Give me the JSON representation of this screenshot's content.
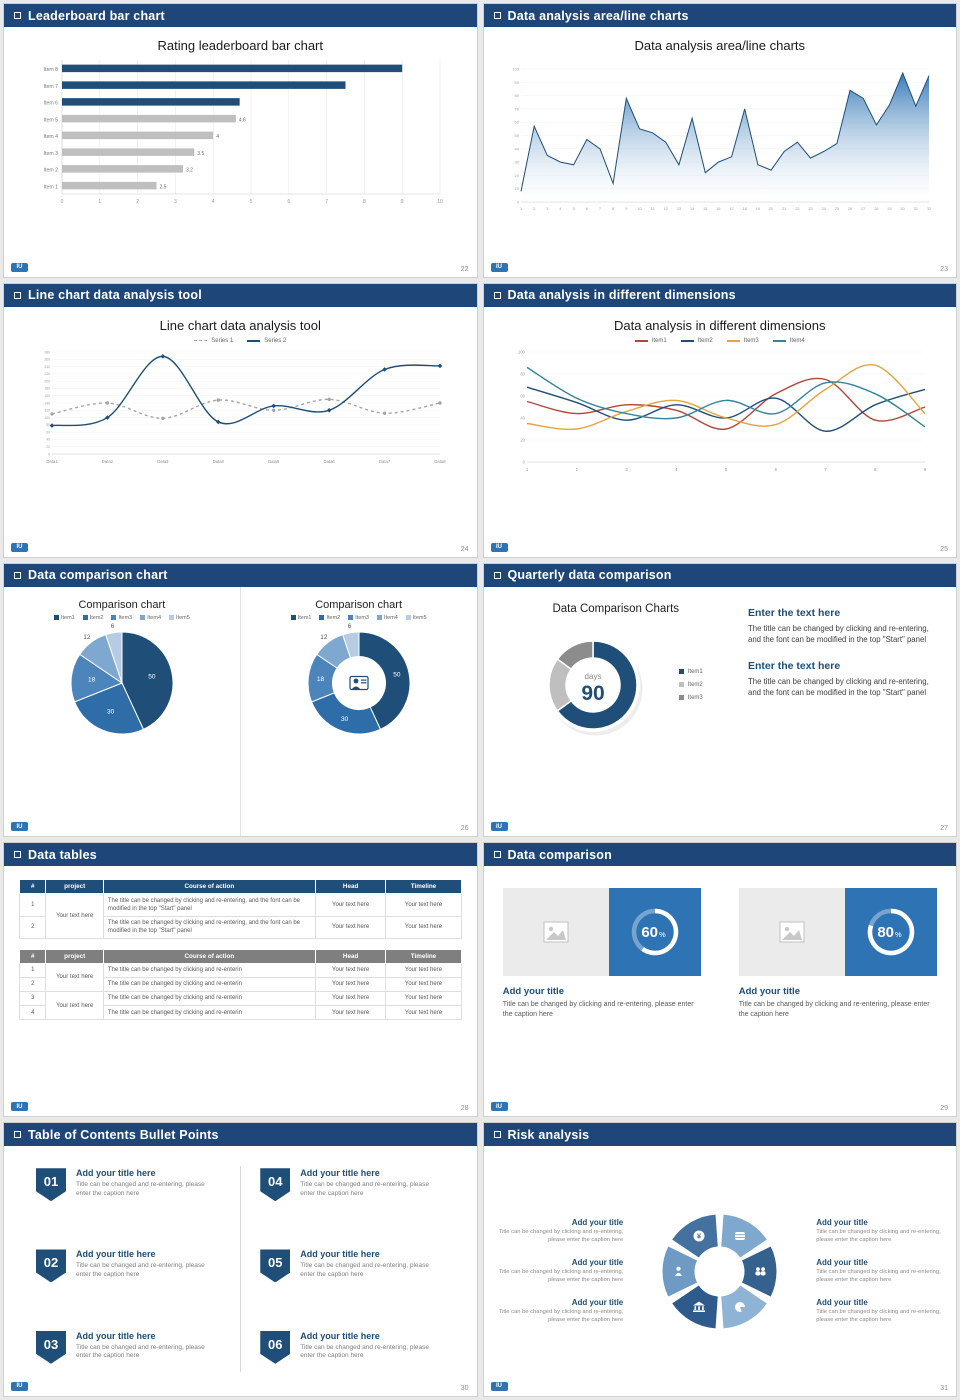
{
  "logo": "IU",
  "colors": {
    "header_bg": "#1F4678",
    "accent": "#1F4E79",
    "bar_gray": "#BFBFBF",
    "panel_blue": "#2E74B5"
  },
  "slides": [
    {
      "header": "Leaderboard bar chart",
      "title": "Rating leaderboard bar chart",
      "page": "22",
      "chart": {
        "type": "hbar",
        "xmax": 10,
        "xticks": [
          0,
          1,
          2,
          3,
          4,
          5,
          6,
          7,
          8,
          9,
          10
        ],
        "items": [
          {
            "label": "Item 8",
            "value": 9,
            "color": "#1F4E79",
            "show_value": false
          },
          {
            "label": "Item 7",
            "value": 7.5,
            "color": "#1F4E79",
            "show_value": false
          },
          {
            "label": "Item 6",
            "value": 4.7,
            "color": "#1F4E79",
            "show_value": false
          },
          {
            "label": "Item 5",
            "value": 4.6,
            "color": "#BFBFBF",
            "show_value": true
          },
          {
            "label": "Item 4",
            "value": 4,
            "color": "#BFBFBF",
            "show_value": true
          },
          {
            "label": "Item 3",
            "value": 3.5,
            "color": "#BFBFBF",
            "show_value": true
          },
          {
            "label": "Item 2",
            "value": 3.2,
            "color": "#BFBFBF",
            "show_value": true
          },
          {
            "label": "Item 1",
            "value": 2.5,
            "color": "#BFBFBF",
            "show_value": true
          }
        ]
      }
    },
    {
      "header": "Data analysis area/line charts",
      "title": "Data analysis area/line charts",
      "page": "23",
      "chart": {
        "type": "area",
        "line_color": "#1F4E79",
        "fill_top": "#2E74B5",
        "fill_bottom": "#FFFFFF",
        "ymin": 0,
        "ymax": 100,
        "ystep": 10,
        "x_labels": [
          "1",
          "2",
          "3",
          "4",
          "5",
          "6",
          "7",
          "8",
          "9",
          "10",
          "11",
          "12",
          "13",
          "14",
          "15",
          "16",
          "17",
          "18",
          "19",
          "20",
          "21",
          "22",
          "23",
          "24",
          "25",
          "26",
          "27",
          "28",
          "29",
          "30",
          "31",
          "32"
        ],
        "values": [
          8,
          57,
          35,
          30,
          28,
          47,
          40,
          14,
          78,
          55,
          52,
          45,
          28,
          63,
          22,
          30,
          34,
          70,
          28,
          24,
          38,
          45,
          33,
          38,
          44,
          84,
          78,
          58,
          73,
          97,
          72,
          95
        ]
      }
    },
    {
      "header": "Line chart data analysis tool",
      "title": "Line chart data analysis tool",
      "page": "24",
      "chart": {
        "type": "lines",
        "categories": [
          "Data1",
          "Data2",
          "Data3",
          "Data4",
          "Data5",
          "Data6",
          "Data7",
          "Data8"
        ],
        "ymin": 0,
        "ymax": 280,
        "ystep": 20,
        "series": [
          {
            "name": "Series 1",
            "color": "#A6A6A6",
            "dash": "3,3",
            "marker": "circle",
            "values": [
              110,
              140,
              98,
              148,
              120,
              150,
              112,
              140
            ]
          },
          {
            "name": "Series 2",
            "color": "#1F4E79",
            "dash": "",
            "marker": "diamond",
            "values": [
              78,
              100,
              268,
              88,
              132,
              120,
              232,
              242
            ]
          }
        ]
      }
    },
    {
      "header": "Data analysis in different dimensions",
      "title": "Data analysis in different dimensions",
      "page": "25",
      "chart": {
        "type": "lines",
        "x_labels": [
          "1",
          "2",
          "3",
          "4",
          "5",
          "6",
          "7",
          "8",
          "9"
        ],
        "ymin": 0,
        "ymax": 100,
        "ystep": 20,
        "series": [
          {
            "name": "Item1",
            "color": "#B4453A",
            "dash": "",
            "marker": "",
            "values": [
              55,
              44,
              52,
              47,
              30,
              62,
              75,
              38,
              50
            ]
          },
          {
            "name": "Item2",
            "color": "#1F4E79",
            "dash": "",
            "marker": "",
            "values": [
              68,
              54,
              38,
              52,
              40,
              58,
              28,
              52,
              66
            ]
          },
          {
            "name": "Item3",
            "color": "#E8A33D",
            "dash": "",
            "marker": "",
            "values": [
              35,
              30,
              46,
              56,
              40,
              34,
              66,
              88,
              44
            ]
          },
          {
            "name": "Item4",
            "color": "#31859C",
            "dash": "",
            "marker": "",
            "values": [
              86,
              58,
              44,
              40,
              56,
              44,
              72,
              62,
              32
            ]
          }
        ]
      }
    },
    {
      "header": "Data comparison chart",
      "page": "26",
      "left": {
        "title": "Comparison chart",
        "legend": [
          "Item1",
          "Item2",
          "Item3",
          "Item4",
          "Item5"
        ],
        "chart": {
          "type": "pie",
          "values": [
            50,
            30,
            18,
            12,
            6
          ],
          "labels": [
            "50",
            "30",
            "18",
            "12",
            "6"
          ],
          "colors": [
            "#1F4E79",
            "#2E6DA8",
            "#4C84BC",
            "#7FA8D0",
            "#B7CCE4"
          ]
        }
      },
      "right": {
        "title": "Comparison chart",
        "legend": [
          "Item1",
          "Item2",
          "Item3",
          "Item4",
          "Item5"
        ],
        "chart": {
          "type": "donut",
          "values": [
            50,
            30,
            18,
            12,
            6
          ],
          "labels": [
            "50",
            "30",
            "18",
            "12",
            "6"
          ],
          "colors": [
            "#1F4E79",
            "#2E6DA8",
            "#4C84BC",
            "#7FA8D0",
            "#B7CCE4"
          ],
          "center_icon": "presenter"
        }
      }
    },
    {
      "header": "Quarterly data comparison",
      "page": "27",
      "title": "Data Comparison Charts",
      "donut": {
        "type": "donut90",
        "center_top": "days",
        "center_value": "90",
        "segments": [
          {
            "label": "Item1",
            "value": 65,
            "color": "#1F4E79"
          },
          {
            "label": "Item2",
            "value": 20,
            "color": "#BFBFBF"
          },
          {
            "label": "Item3",
            "value": 15,
            "color": "#8C8C8C"
          }
        ]
      },
      "blocks": [
        {
          "heading": "Enter the text here",
          "body": "The title can be changed by clicking and re-entering, and the font can be modified in the top \"Start\" panel"
        },
        {
          "heading": "Enter the text here",
          "body": "The title can be changed by clicking and re-entering, and the font can be modified in the top \"Start\" panel"
        }
      ]
    },
    {
      "header": "Data tables",
      "page": "28",
      "table1": {
        "header": [
          "#",
          "project",
          "Course of action",
          "Head",
          "Timeline"
        ],
        "rows": [
          {
            "num": "1",
            "project": "Your text here",
            "action": "The title can be changed by clicking and re-entering, and the font can be modified in the top \"Start\" panel",
            "head": "Your text here",
            "timeline": "Your text here"
          },
          {
            "num": "2",
            "action": "The title can be changed by clicking and re-entering, and the font can be modified in the top \"Start\" panel",
            "head": "Your text here",
            "timeline": "Your text here"
          }
        ]
      },
      "table2": {
        "header": [
          "#",
          "project",
          "Course of action",
          "Head",
          "Timeline"
        ],
        "rows": [
          {
            "num": "1",
            "project": "Your text here",
            "action": "The title can be changed by clicking and re-enterin",
            "head": "Your text here",
            "timeline": "Your text here"
          },
          {
            "num": "2",
            "action": "The title can be changed by clicking and re-enterin",
            "head": "Your text here",
            "timeline": "Your text here"
          },
          {
            "num": "3",
            "project": "Your text here",
            "action": "The title can be changed by clicking and re-enterin",
            "head": "Your text here",
            "timeline": "Your text here"
          },
          {
            "num": "4",
            "action": "The title can be changed by clicking and re-enterin",
            "head": "Your text here",
            "timeline": "Your text here"
          }
        ]
      }
    },
    {
      "header": "Data comparison",
      "page": "29",
      "cards": [
        {
          "ring": {
            "type": "ring",
            "percent": 60
          },
          "title": "Add your title",
          "caption": "Title can be changed by clicking and re-entering, please enter the caption here"
        },
        {
          "ring": {
            "type": "ring",
            "percent": 80
          },
          "title": "Add your title",
          "caption": "Title can be changed by clicking and re-entering, please enter the caption here"
        }
      ]
    },
    {
      "header": "Table of Contents Bullet Points",
      "page": "30",
      "items": [
        {
          "num": "01",
          "title": "Add your title here",
          "caption": "Title can be changed and re-entering, please enter the caption here"
        },
        {
          "num": "02",
          "title": "Add your title here",
          "caption": "Title can be changed and re-entering, please enter the caption here"
        },
        {
          "num": "03",
          "title": "Add your title here",
          "caption": "Title can be changed and re-entering, please enter the caption here"
        },
        {
          "num": "04",
          "title": "Add your title here",
          "caption": "Title can be changed and re-entering, please enter the caption here"
        },
        {
          "num": "05",
          "title": "Add your title here",
          "caption": "Title can be changed and re-entering, please enter the caption here"
        },
        {
          "num": "06",
          "title": "Add your title here",
          "caption": "Title can be changed and re-entering, please enter the caption here"
        }
      ]
    },
    {
      "header": "Risk analysis",
      "page": "31",
      "diagram": {
        "type": "risk",
        "colors": [
          "#7FA8CE",
          "#35618F",
          "#8FB3D5",
          "#2F5B8C",
          "#6E9AC4",
          "#44719F"
        ],
        "icons": [
          "coins",
          "people",
          "pie",
          "bank",
          "person",
          "moneybag"
        ]
      },
      "left_blocks": [
        {
          "title": "Add your title",
          "caption": "Title can be changed by clicking and re-entering, please enter the caption here"
        },
        {
          "title": "Add your title",
          "caption": "Title can be changed by clicking and re-entering, please enter the caption here"
        },
        {
          "title": "Add your title",
          "caption": "Title can be changed by clicking and re-entering, please enter the caption here"
        }
      ],
      "right_blocks": [
        {
          "title": "Add your title",
          "caption": "Title can be changed by clicking and re-entering, please enter the caption here"
        },
        {
          "title": "Add your title",
          "caption": "Title can be changed by clicking and re-entering, please enter the caption here"
        },
        {
          "title": "Add your title",
          "caption": "Title can be changed by clicking and re-entering, please enter the caption here"
        }
      ]
    }
  ]
}
